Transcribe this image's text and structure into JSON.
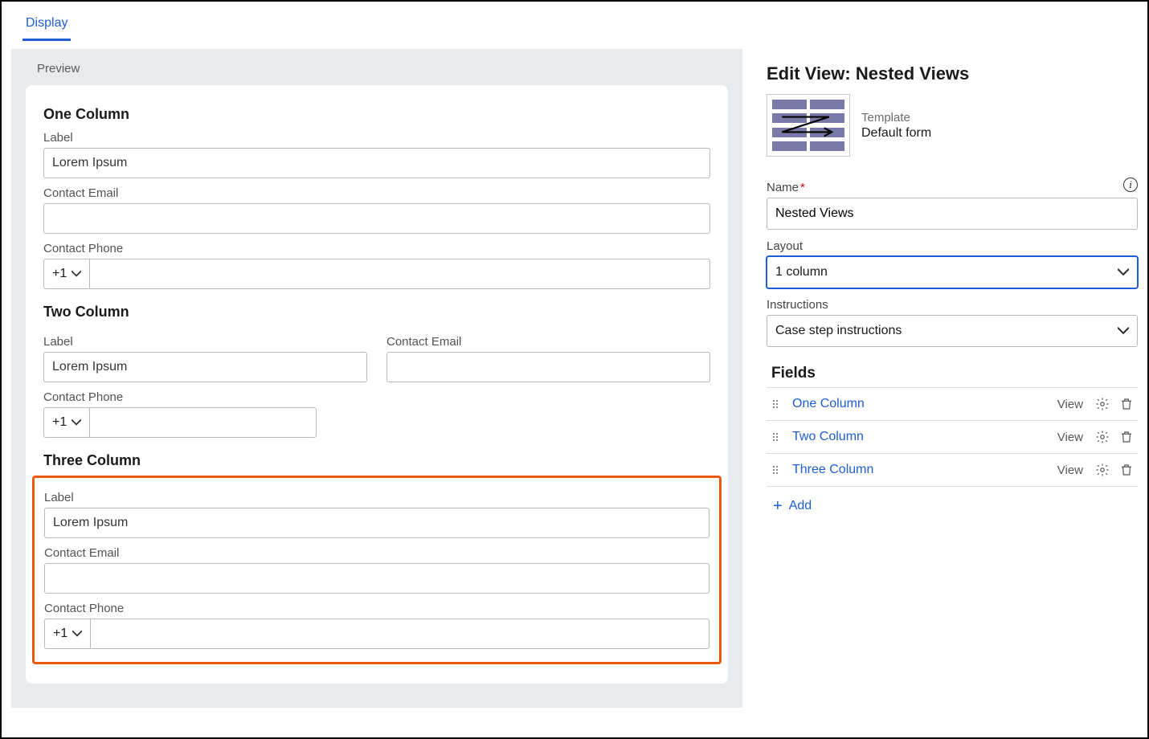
{
  "tab": {
    "label": "Display"
  },
  "preview": {
    "title": "Preview",
    "sections": {
      "one": {
        "heading": "One Column",
        "label_field": {
          "label": "Label",
          "value": "Lorem Ipsum"
        },
        "email_field": {
          "label": "Contact Email",
          "value": ""
        },
        "phone_field": {
          "label": "Contact Phone",
          "prefix": "+1",
          "value": ""
        }
      },
      "two": {
        "heading": "Two Column",
        "label_field": {
          "label": "Label",
          "value": "Lorem Ipsum"
        },
        "email_field": {
          "label": "Contact Email",
          "value": ""
        },
        "phone_field": {
          "label": "Contact Phone",
          "prefix": "+1",
          "value": ""
        }
      },
      "three": {
        "heading": "Three Column",
        "label_field": {
          "label": "Label",
          "value": "Lorem Ipsum"
        },
        "email_field": {
          "label": "Contact Email",
          "value": ""
        },
        "phone_field": {
          "label": "Contact Phone",
          "prefix": "+1",
          "value": ""
        }
      }
    }
  },
  "edit": {
    "title": "Edit View: Nested Views",
    "template": {
      "label": "Template",
      "value": "Default form"
    },
    "name": {
      "label": "Name",
      "value": "Nested Views"
    },
    "layout": {
      "label": "Layout",
      "value": "1 column"
    },
    "instructions": {
      "label": "Instructions",
      "value": "Case step instructions"
    },
    "fields_title": "Fields",
    "fields": [
      {
        "name": "One Column",
        "badge": "View"
      },
      {
        "name": "Two Column",
        "badge": "View"
      },
      {
        "name": "Three Column",
        "badge": "View"
      }
    ],
    "add_label": "Add"
  },
  "colors": {
    "link": "#1f5dd6",
    "highlight": "#e8590b",
    "panel_bg": "#e8ebee",
    "template_bar": "#7a7aa8"
  }
}
